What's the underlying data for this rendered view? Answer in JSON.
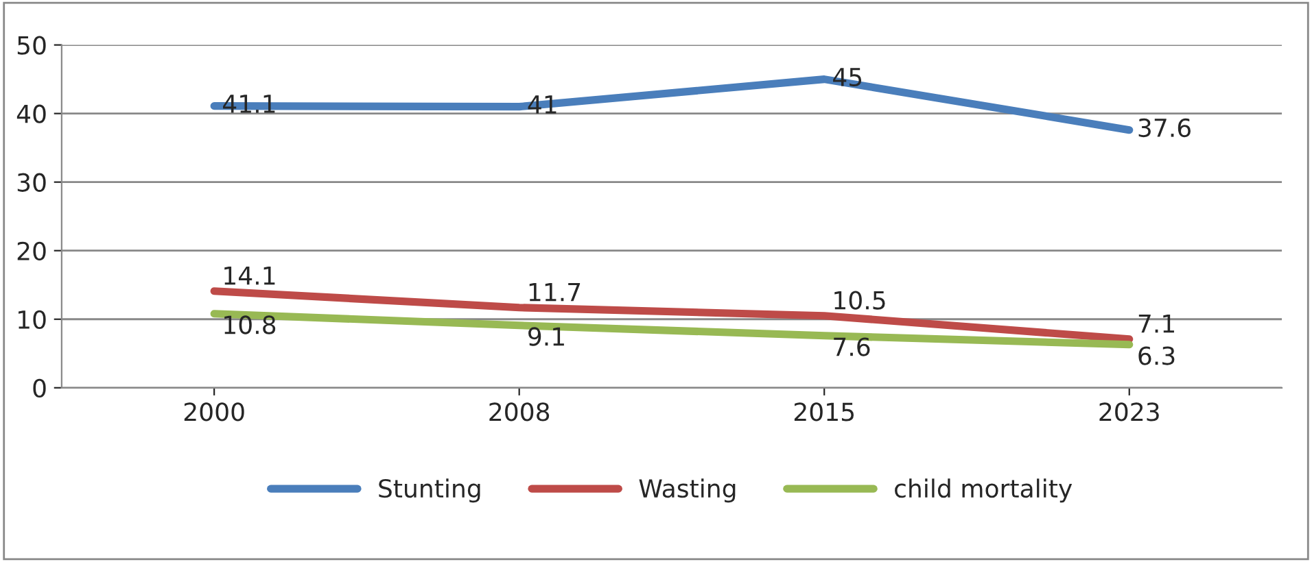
{
  "chart_data": {
    "type": "line",
    "categories": [
      "2000",
      "2008",
      "2015",
      "2023"
    ],
    "series": [
      {
        "name": "Stunting",
        "color": "#4a7ebb",
        "values": [
          41.1,
          41,
          45,
          37.6
        ]
      },
      {
        "name": "Wasting",
        "color": "#be4b48",
        "values": [
          14.1,
          11.7,
          10.5,
          7.1
        ]
      },
      {
        "name": "child mortality",
        "color": "#98b954",
        "values": [
          10.8,
          9.1,
          7.6,
          6.3
        ]
      }
    ],
    "ylim": [
      0,
      50
    ],
    "yticks": [
      0,
      10,
      20,
      30,
      40,
      50
    ],
    "grid": "y",
    "legend": "bottom",
    "data_labels": true,
    "marker": "none",
    "line_style": "solid"
  }
}
